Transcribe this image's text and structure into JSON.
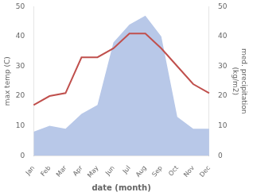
{
  "chart_data": {
    "type": "line",
    "categories": [
      "Jan",
      "Feb",
      "Mar",
      "Apr",
      "May",
      "Jun",
      "Jul",
      "Aug",
      "Sep",
      "Oct",
      "Nov",
      "Dec"
    ],
    "series": [
      {
        "type": "area",
        "color": "#b8c8e8",
        "axis": "y2",
        "values": [
          8,
          10,
          9,
          14,
          17,
          38,
          44,
          47,
          40,
          13,
          9,
          9
        ]
      },
      {
        "type": "line",
        "color": "#c0504d",
        "values": [
          17,
          20,
          21,
          33,
          33,
          36,
          41,
          41,
          36,
          30,
          24,
          21
        ]
      }
    ],
    "xlabel": "date (month)",
    "ylabel": "max temp (C)",
    "y2label": "med. precipitation\n(kg/m2)",
    "ylim": [
      0,
      50
    ],
    "yticks": [
      0,
      10,
      20,
      30,
      40,
      50
    ],
    "y2lim": [
      0,
      50
    ],
    "y2ticks": [
      0,
      10,
      20,
      30,
      40,
      50
    ],
    "grid": false
  }
}
